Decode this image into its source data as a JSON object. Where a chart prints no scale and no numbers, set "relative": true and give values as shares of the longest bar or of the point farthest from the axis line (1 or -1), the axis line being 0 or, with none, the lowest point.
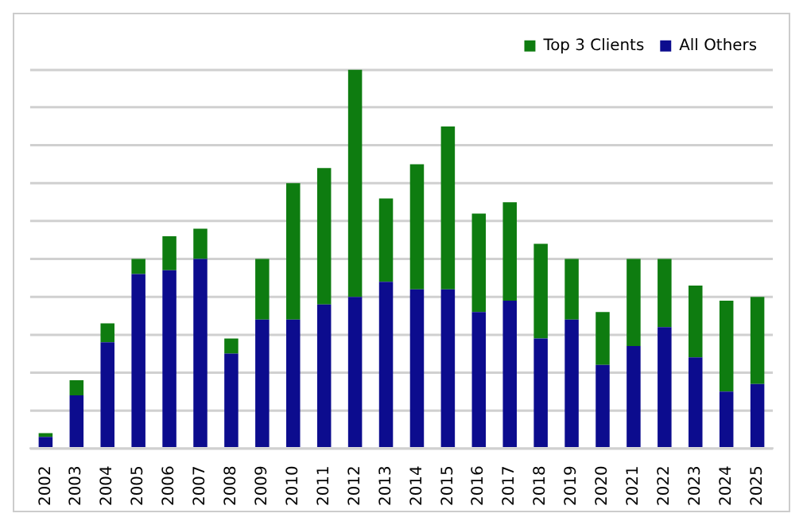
{
  "chart_data": {
    "type": "bar",
    "stacked": true,
    "relative": true,
    "grid": "y",
    "legend": "top right",
    "categories": [
      "2002",
      "2003",
      "2004",
      "2005",
      "2006",
      "2007",
      "2008",
      "2009",
      "2010",
      "2011",
      "2012",
      "2013",
      "2014",
      "2015",
      "2016",
      "2017",
      "2018",
      "2019",
      "2020",
      "2021",
      "2022",
      "2023",
      "2024",
      "2025"
    ],
    "series": [
      {
        "name": "All Others",
        "color": "#0c0c8e",
        "values": [
          0.03,
          0.14,
          0.28,
          0.46,
          0.47,
          0.5,
          0.25,
          0.34,
          0.34,
          0.38,
          0.4,
          0.44,
          0.42,
          0.42,
          0.36,
          0.39,
          0.29,
          0.34,
          0.22,
          0.27,
          0.32,
          0.24,
          0.15,
          0.17
        ]
      },
      {
        "name": "Top 3 Clients",
        "color": "#0e7c10",
        "values": [
          0.01,
          0.04,
          0.05,
          0.04,
          0.09,
          0.08,
          0.04,
          0.16,
          0.36,
          0.36,
          0.6,
          0.22,
          0.33,
          0.43,
          0.26,
          0.26,
          0.25,
          0.16,
          0.14,
          0.23,
          0.18,
          0.19,
          0.24,
          0.23
        ]
      }
    ]
  }
}
